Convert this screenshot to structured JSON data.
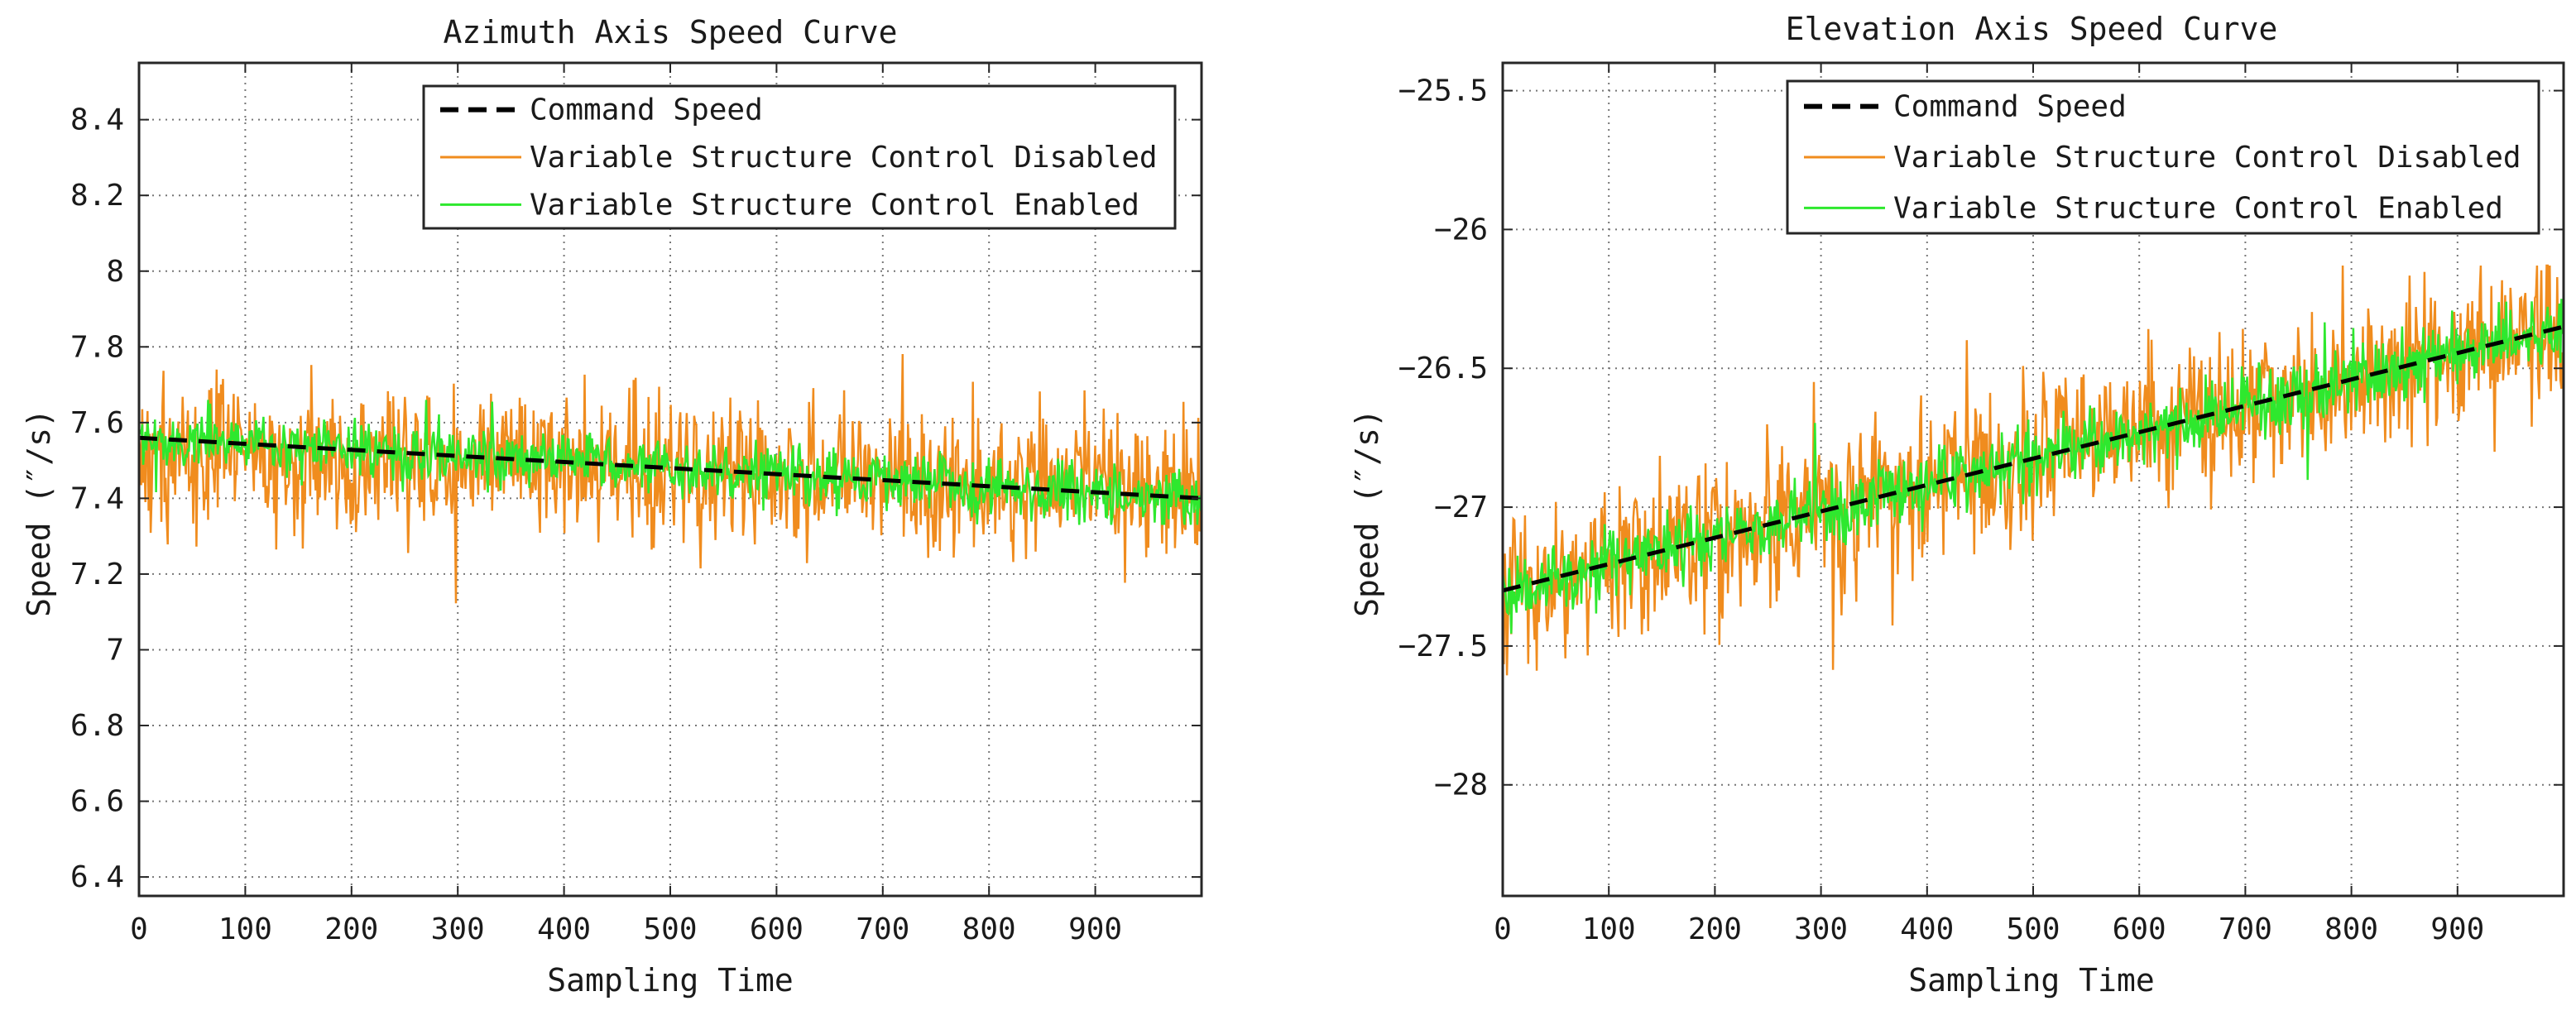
{
  "colors": {
    "command": "#000000",
    "disabled": "#f08c1e",
    "enabled": "#2ee82e",
    "grid": "#777777",
    "axis": "#262626"
  },
  "chart_data": [
    {
      "type": "line",
      "title": "Azimuth Axis Speed Curve",
      "xlabel": "Sampling Time",
      "ylabel": "Speed (″/s)",
      "xlim": [
        0,
        1000
      ],
      "ylim": [
        6.35,
        8.55
      ],
      "xticks": [
        0,
        100,
        200,
        300,
        400,
        500,
        600,
        700,
        800,
        900
      ],
      "xtick_labels": [
        "0",
        "100",
        "200",
        "300",
        "400",
        "500",
        "600",
        "700",
        "800",
        "900"
      ],
      "yticks": [
        6.4,
        6.6,
        6.8,
        7,
        7.2,
        7.4,
        7.6,
        7.8,
        8,
        8.2,
        8.4
      ],
      "ytick_labels": [
        "6.4",
        "6.6",
        "6.8",
        "7",
        "7.2",
        "7.4",
        "7.6",
        "7.8",
        "8",
        "8.2",
        "8.4"
      ],
      "grid": true,
      "legend_position": "top-right",
      "series": [
        {
          "name": "Command Speed",
          "style": "dashed",
          "trend_start": 7.56,
          "trend_end": 7.4
        },
        {
          "name": "Variable Structure Control Disabled",
          "style": "solid",
          "trend_start": 7.52,
          "trend_end": 7.42,
          "noise_amplitude": 0.15,
          "min": 7.04,
          "max": 7.88
        },
        {
          "name": "Variable Structure Control Enabled",
          "style": "solid",
          "trend_start": 7.56,
          "trend_end": 7.4,
          "noise_amplitude": 0.06,
          "min": 7.33,
          "max": 7.66
        }
      ]
    },
    {
      "type": "line",
      "title": "Elevation Axis Speed Curve",
      "xlabel": "Sampling Time",
      "ylabel": "Speed (″/s)",
      "xlim": [
        0,
        1000
      ],
      "ylim": [
        -28.4,
        -25.4
      ],
      "xticks": [
        0,
        100,
        200,
        300,
        400,
        500,
        600,
        700,
        800,
        900
      ],
      "xtick_labels": [
        "0",
        "100",
        "200",
        "300",
        "400",
        "500",
        "600",
        "700",
        "800",
        "900"
      ],
      "yticks": [
        -28,
        -27.5,
        -27,
        -26.5,
        -26,
        -25.5
      ],
      "ytick_labels": [
        "−28",
        "−27.5",
        "−27",
        "−26.5",
        "−26",
        "−25.5"
      ],
      "grid": true,
      "legend_position": "top-right",
      "series": [
        {
          "name": "Command Speed",
          "style": "dashed",
          "trend_start": -27.3,
          "trend_end": -26.35
        },
        {
          "name": "Variable Structure Control Disabled",
          "style": "solid",
          "trend_start": -27.3,
          "trend_end": -26.35,
          "noise_amplitude": 0.22,
          "min": -27.65,
          "max": -26.13
        },
        {
          "name": "Variable Structure Control Enabled",
          "style": "solid",
          "trend_start": -27.3,
          "trend_end": -26.35,
          "noise_amplitude": 0.1,
          "min": -27.55,
          "max": -26.25
        }
      ]
    }
  ]
}
